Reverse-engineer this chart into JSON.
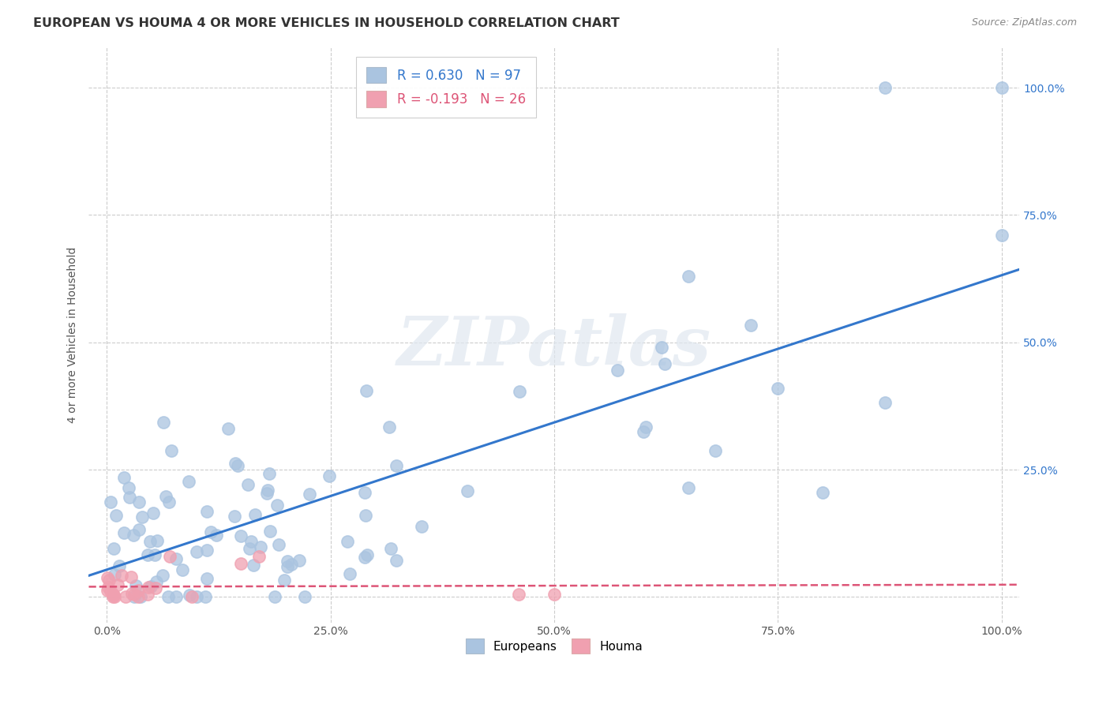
{
  "title": "EUROPEAN VS HOUMA 4 OR MORE VEHICLES IN HOUSEHOLD CORRELATION CHART",
  "source_text": "Source: ZipAtlas.com",
  "ylabel": "4 or more Vehicles in Household",
  "xlim": [
    -0.02,
    1.02
  ],
  "ylim": [
    -0.05,
    1.08
  ],
  "xtick_labels": [
    "0.0%",
    "25.0%",
    "50.0%",
    "75.0%",
    "100.0%"
  ],
  "xtick_positions": [
    0.0,
    0.25,
    0.5,
    0.75,
    1.0
  ],
  "ytick_labels_right": [
    "100.0%",
    "75.0%",
    "50.0%",
    "25.0%"
  ],
  "ytick_positions_right": [
    1.0,
    0.75,
    0.5,
    0.25
  ],
  "background_color": "#ffffff",
  "plot_bg_color": "#ffffff",
  "grid_color": "#cccccc",
  "european_color": "#aac4e0",
  "houma_color": "#f0a0b0",
  "european_line_color": "#3377cc",
  "houma_line_color": "#dd5577",
  "legend_european_r": "0.630",
  "legend_european_n": "97",
  "legend_houma_r": "-0.193",
  "legend_houma_n": "26",
  "watermark": "ZIPatlas",
  "eu_seed": 12345,
  "ho_seed": 67890
}
